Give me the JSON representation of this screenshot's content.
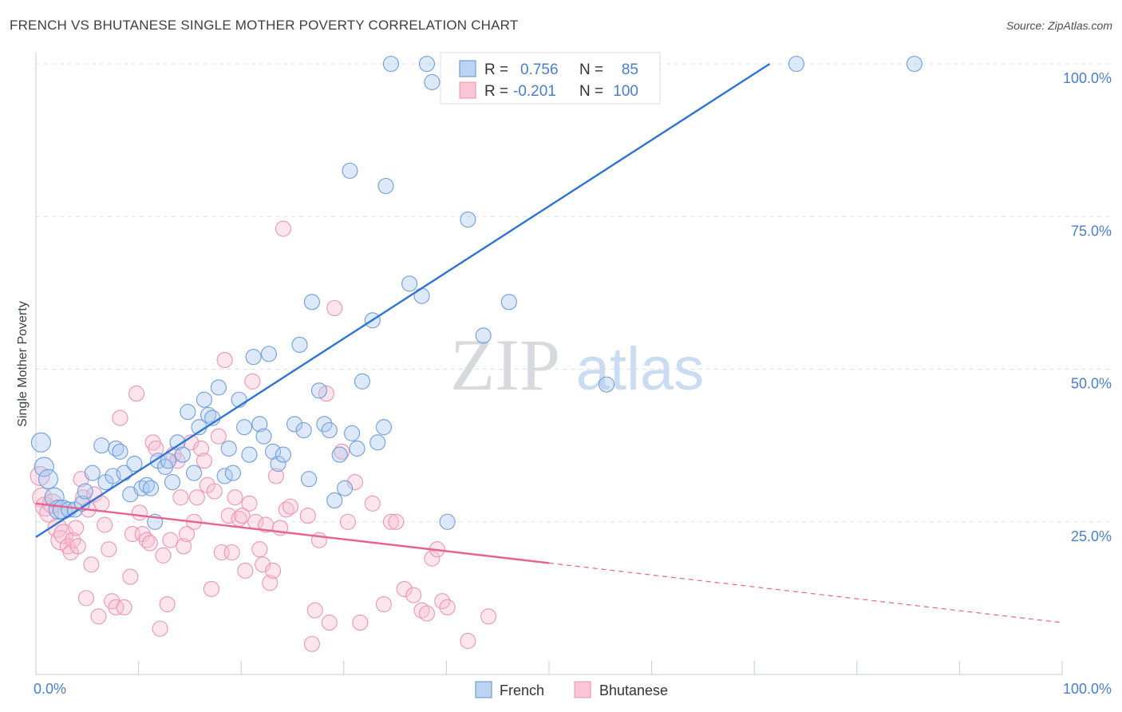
{
  "title": "FRENCH VS BHUTANESE SINGLE MOTHER POVERTY CORRELATION CHART",
  "source": "Source: ZipAtlas.com",
  "watermark": {
    "zip": "ZIP",
    "atlas": "atlas"
  },
  "legend_box": {
    "rows": [
      {
        "r_label": "R =",
        "r_value": "0.756",
        "n_label": "N =",
        "n_value": "85"
      },
      {
        "r_label": "R =",
        "r_value": "-0.201",
        "n_label": "N =",
        "n_value": "100"
      }
    ]
  },
  "colors": {
    "french": "#5b8fd6",
    "french_line": "#2f74d0",
    "bhutanese": "#ef8fae",
    "bhutanese_line": "#e8628f",
    "axis_text": "#4a7fcc",
    "grid": "#dde0e5"
  },
  "chart_data": {
    "type": "scatter",
    "title": "FRENCH VS BHUTANESE SINGLE MOTHER POVERTY CORRELATION CHART",
    "xlabel": "",
    "ylabel": "Single Mother Poverty",
    "xlim": [
      0,
      100
    ],
    "ylim": [
      0,
      100
    ],
    "x_tick_labels": [
      "0.0%",
      "100.0%"
    ],
    "y_tick_labels": [
      "25.0%",
      "50.0%",
      "75.0%",
      "100.0%"
    ],
    "y_ticks": [
      25,
      50,
      75,
      100
    ],
    "grid": true,
    "legend_position": "bottom-center",
    "series": [
      {
        "name": "French",
        "color": "#5b8fd6",
        "r": 0.756,
        "n": 85,
        "trend": {
          "x": [
            0,
            71.5
          ],
          "y": [
            22.5,
            100
          ]
        },
        "points": [
          [
            0.5,
            38
          ],
          [
            0.8,
            34
          ],
          [
            1.2,
            32
          ],
          [
            1.8,
            29
          ],
          [
            2.2,
            27
          ],
          [
            2.6,
            27
          ],
          [
            3.2,
            27
          ],
          [
            3.8,
            27
          ],
          [
            4.5,
            28
          ],
          [
            4.8,
            30
          ],
          [
            5.5,
            33
          ],
          [
            6.4,
            37.5
          ],
          [
            6.8,
            31.5
          ],
          [
            7.5,
            32.5
          ],
          [
            7.8,
            37
          ],
          [
            8.2,
            36.5
          ],
          [
            8.6,
            33
          ],
          [
            9.2,
            29.5
          ],
          [
            9.6,
            34.5
          ],
          [
            10.3,
            30.5
          ],
          [
            10.8,
            31
          ],
          [
            11.2,
            30.5
          ],
          [
            11.6,
            25
          ],
          [
            11.9,
            35
          ],
          [
            12.6,
            34
          ],
          [
            12.9,
            35
          ],
          [
            13.3,
            31.5
          ],
          [
            13.8,
            38
          ],
          [
            14.3,
            36
          ],
          [
            14.8,
            43
          ],
          [
            15.4,
            33
          ],
          [
            15.9,
            40.5
          ],
          [
            16.4,
            45
          ],
          [
            16.8,
            42.5
          ],
          [
            17.2,
            42
          ],
          [
            17.8,
            47
          ],
          [
            18.4,
            32.5
          ],
          [
            18.8,
            37
          ],
          [
            19.2,
            33
          ],
          [
            19.8,
            45
          ],
          [
            20.3,
            40.5
          ],
          [
            20.8,
            36
          ],
          [
            21.2,
            52
          ],
          [
            21.8,
            41
          ],
          [
            22.2,
            39
          ],
          [
            22.7,
            52.5
          ],
          [
            23.1,
            36.5
          ],
          [
            23.6,
            34.5
          ],
          [
            24.1,
            36
          ],
          [
            25.2,
            41
          ],
          [
            25.7,
            54
          ],
          [
            26.1,
            40
          ],
          [
            26.6,
            32
          ],
          [
            26.9,
            61
          ],
          [
            27.6,
            46.5
          ],
          [
            28.1,
            41
          ],
          [
            28.6,
            40
          ],
          [
            29.1,
            28.5
          ],
          [
            29.6,
            36
          ],
          [
            30.1,
            30.5
          ],
          [
            30.6,
            82.5
          ],
          [
            30.8,
            39.5
          ],
          [
            31.3,
            37
          ],
          [
            31.8,
            48
          ],
          [
            32.8,
            58
          ],
          [
            33.3,
            38
          ],
          [
            34.1,
            80
          ],
          [
            34.6,
            100
          ],
          [
            36.4,
            64
          ],
          [
            37.6,
            62
          ],
          [
            38.1,
            100
          ],
          [
            38.6,
            97
          ],
          [
            40.1,
            25
          ],
          [
            42.1,
            74.5
          ],
          [
            43.6,
            55.5
          ],
          [
            45.1,
            100
          ],
          [
            46.1,
            61
          ],
          [
            47.6,
            100
          ],
          [
            48.6,
            100
          ],
          [
            55.6,
            47.5
          ],
          [
            74.1,
            100
          ],
          [
            85.6,
            100
          ],
          [
            40.6,
            100
          ],
          [
            49.6,
            100
          ],
          [
            33.9,
            40.5
          ]
        ]
      },
      {
        "name": "Bhutanese",
        "color": "#ef8fae",
        "r": -0.201,
        "n": 100,
        "trend": {
          "x": [
            0,
            100
          ],
          "y": [
            28,
            8.5
          ],
          "solid_end_x": 50
        },
        "points": [
          [
            0.4,
            32.5
          ],
          [
            0.6,
            29
          ],
          [
            0.9,
            27.5
          ],
          [
            1.3,
            26.5
          ],
          [
            1.6,
            28
          ],
          [
            2.1,
            24
          ],
          [
            2.4,
            22
          ],
          [
            2.7,
            23
          ],
          [
            3.1,
            21
          ],
          [
            3.4,
            20
          ],
          [
            3.6,
            22
          ],
          [
            3.9,
            24
          ],
          [
            4.1,
            21
          ],
          [
            4.4,
            32
          ],
          [
            4.6,
            29
          ],
          [
            4.9,
            12.5
          ],
          [
            5.1,
            27
          ],
          [
            5.4,
            18
          ],
          [
            5.7,
            29.5
          ],
          [
            6.1,
            9.5
          ],
          [
            6.4,
            28
          ],
          [
            6.7,
            24.5
          ],
          [
            7.1,
            20.5
          ],
          [
            7.4,
            12
          ],
          [
            7.8,
            11
          ],
          [
            8.2,
            42
          ],
          [
            8.6,
            11
          ],
          [
            9.2,
            16
          ],
          [
            9.4,
            23
          ],
          [
            9.8,
            46
          ],
          [
            10.1,
            26.5
          ],
          [
            10.4,
            23
          ],
          [
            10.8,
            22
          ],
          [
            11.1,
            21.5
          ],
          [
            11.4,
            38
          ],
          [
            11.7,
            37
          ],
          [
            12.1,
            7.5
          ],
          [
            12.4,
            19.5
          ],
          [
            12.8,
            11.5
          ],
          [
            13.1,
            22
          ],
          [
            13.4,
            36
          ],
          [
            13.8,
            35
          ],
          [
            14.1,
            29
          ],
          [
            14.4,
            21
          ],
          [
            14.7,
            23
          ],
          [
            15.1,
            38
          ],
          [
            15.4,
            25
          ],
          [
            15.7,
            29
          ],
          [
            16.1,
            37
          ],
          [
            16.4,
            35
          ],
          [
            16.7,
            31
          ],
          [
            17.1,
            14
          ],
          [
            17.4,
            30
          ],
          [
            17.8,
            39
          ],
          [
            18.1,
            20
          ],
          [
            18.4,
            51.5
          ],
          [
            18.8,
            26
          ],
          [
            19.1,
            20
          ],
          [
            19.4,
            29
          ],
          [
            19.8,
            25.5
          ],
          [
            20.1,
            26
          ],
          [
            20.4,
            17
          ],
          [
            20.8,
            28
          ],
          [
            21.1,
            48
          ],
          [
            21.4,
            25
          ],
          [
            21.8,
            20.5
          ],
          [
            22.1,
            18
          ],
          [
            22.4,
            24.5
          ],
          [
            22.8,
            15
          ],
          [
            23.1,
            17
          ],
          [
            23.4,
            32.5
          ],
          [
            23.8,
            24
          ],
          [
            24.1,
            73
          ],
          [
            24.4,
            27
          ],
          [
            24.8,
            27.5
          ],
          [
            26.5,
            26
          ],
          [
            26.9,
            5
          ],
          [
            27.2,
            10.5
          ],
          [
            27.6,
            22
          ],
          [
            28.3,
            46
          ],
          [
            28.6,
            8.5
          ],
          [
            29.1,
            60
          ],
          [
            29.8,
            36.5
          ],
          [
            30.4,
            25
          ],
          [
            31.1,
            31.5
          ],
          [
            31.6,
            8.5
          ],
          [
            32.8,
            28
          ],
          [
            33.9,
            11.5
          ],
          [
            34.6,
            25
          ],
          [
            35.1,
            25
          ],
          [
            35.9,
            14
          ],
          [
            36.8,
            13
          ],
          [
            37.6,
            10.5
          ],
          [
            38.1,
            10
          ],
          [
            38.6,
            19
          ],
          [
            39.1,
            20.5
          ],
          [
            39.6,
            12
          ],
          [
            40.1,
            11
          ],
          [
            42.1,
            5.5
          ],
          [
            44.1,
            9.5
          ]
        ]
      }
    ]
  },
  "legend": {
    "items": [
      {
        "label": "French"
      },
      {
        "label": "Bhutanese"
      }
    ]
  }
}
